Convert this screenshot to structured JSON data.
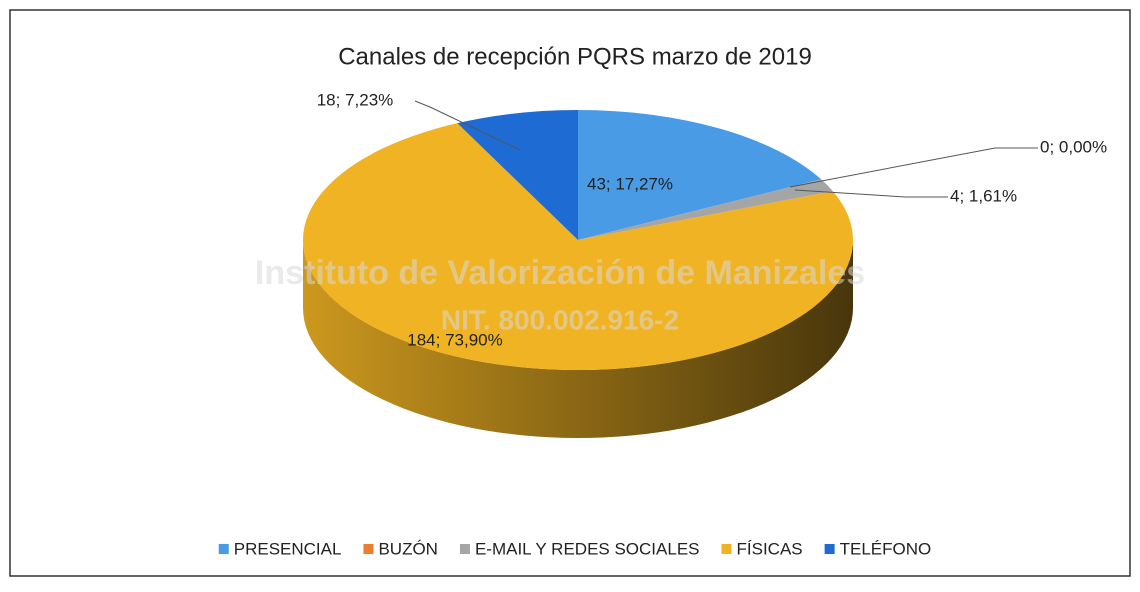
{
  "chart_data": {
    "type": "pie",
    "title": "Canales de recepción PQRS marzo de 2019",
    "watermark": [
      "Instituto de Valorización de Manizales",
      "NIT. 800.002.916-2"
    ],
    "categories": [
      "PRESENCIAL",
      "BUZÓN",
      "E-MAIL Y REDES SOCIALES",
      "FÍSICAS",
      "TELÉFONO"
    ],
    "values": [
      43,
      0,
      4,
      184,
      18
    ],
    "value_labels": [
      "43; 17,27%",
      "0; 0,00%",
      "4; 1,61%",
      "184; 73,90%",
      "18; 7,23%"
    ],
    "colors": [
      "#4a9be6",
      "#ed7d31",
      "#a5a5a5",
      "#f0b323",
      "#1f6bd4"
    ],
    "legend": "bottom"
  }
}
